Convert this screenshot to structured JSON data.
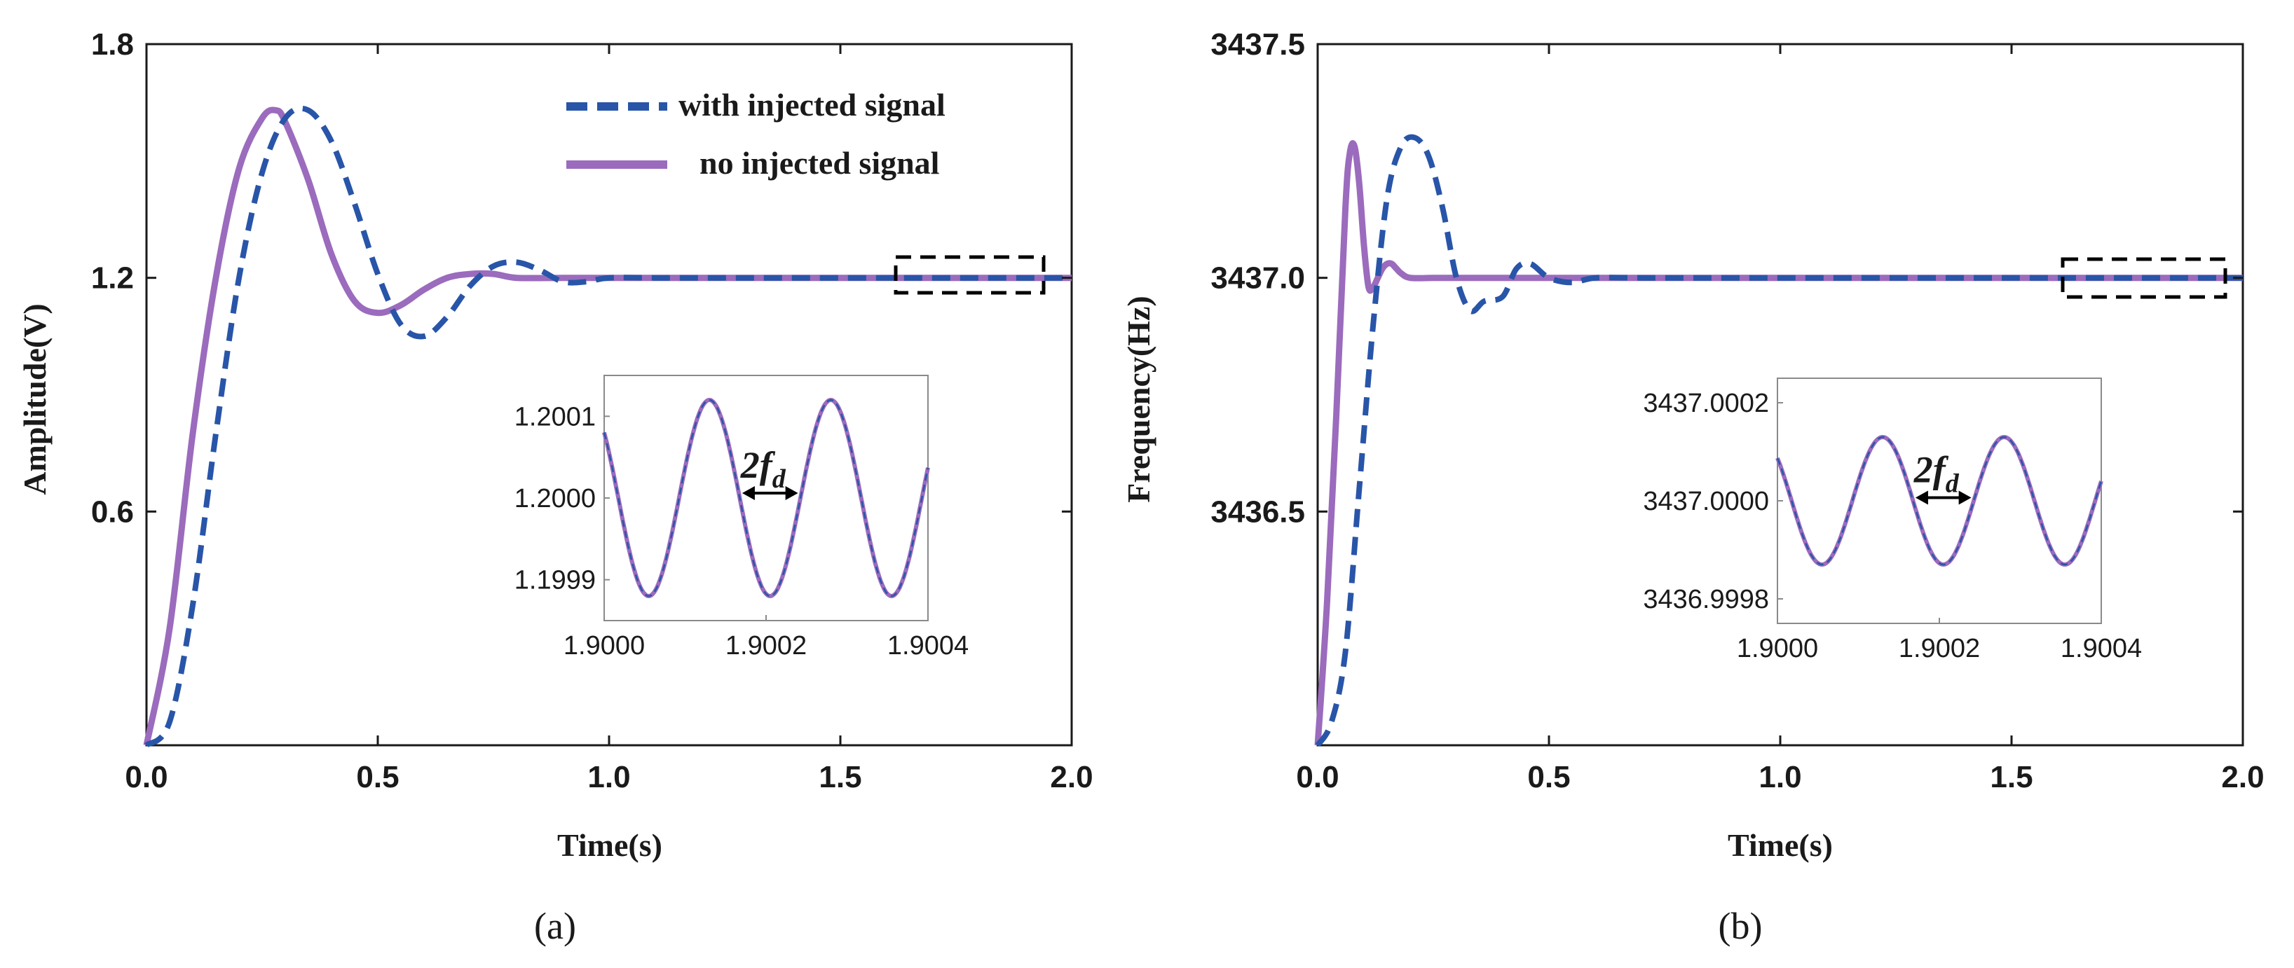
{
  "chart_data": [
    {
      "type": "line",
      "panel_label": "(a)",
      "xlabel": "Time(s)",
      "ylabel": "Amplitude(V)",
      "xlim": [
        0,
        2.0
      ],
      "ylim": [
        0,
        1.8
      ],
      "xticks": [
        "0.0",
        "0.5",
        "1.0",
        "1.5",
        "2.0"
      ],
      "yticks": [
        "0.6",
        "1.2",
        "1.8"
      ],
      "legend": [
        "with injected signal",
        "no injected signal"
      ],
      "series": [
        {
          "name": "with injected signal",
          "style": "dashed",
          "x": [
            0,
            0.05,
            0.1,
            0.15,
            0.2,
            0.25,
            0.3,
            0.35,
            0.4,
            0.45,
            0.5,
            0.55,
            0.6,
            0.65,
            0.7,
            0.75,
            0.8,
            0.85,
            0.9,
            0.95,
            1.0,
            1.1,
            1.2,
            1.3,
            1.4,
            1.6,
            1.8,
            2.0
          ],
          "y": [
            0.0,
            0.06,
            0.36,
            0.8,
            1.2,
            1.47,
            1.61,
            1.63,
            1.55,
            1.39,
            1.21,
            1.08,
            1.05,
            1.1,
            1.18,
            1.23,
            1.24,
            1.22,
            1.19,
            1.19,
            1.2,
            1.2,
            1.2,
            1.2,
            1.2,
            1.2,
            1.2,
            1.2
          ]
        },
        {
          "name": "no injected signal",
          "style": "solid",
          "x": [
            0,
            0.05,
            0.1,
            0.15,
            0.2,
            0.25,
            0.28,
            0.3,
            0.35,
            0.4,
            0.45,
            0.5,
            0.55,
            0.6,
            0.65,
            0.7,
            0.75,
            0.8,
            0.9,
            1.0,
            1.2,
            1.5,
            2.0
          ],
          "y": [
            0.0,
            0.3,
            0.8,
            1.2,
            1.48,
            1.61,
            1.63,
            1.6,
            1.45,
            1.26,
            1.14,
            1.11,
            1.13,
            1.17,
            1.2,
            1.21,
            1.21,
            1.2,
            1.2,
            1.2,
            1.2,
            1.2,
            1.2
          ]
        }
      ],
      "inset": {
        "xlim": [
          1.9,
          1.9004
        ],
        "ylim": [
          1.19985,
          1.20015
        ],
        "xticks": [
          "1.9000",
          "1.9002",
          "1.9004"
        ],
        "yticks": [
          "1.1999",
          "1.2000",
          "1.2001"
        ],
        "sine_center": 1.2,
        "sine_amplitude": 0.00012,
        "sine_period": 0.00015,
        "sine_first_peak": 1.90013,
        "annotation": "2f",
        "annotation_sub": "d"
      }
    },
    {
      "type": "line",
      "panel_label": "(b)",
      "xlabel": "Time(s)",
      "ylabel": "Frequency(Hz)",
      "xlim": [
        0,
        2.0
      ],
      "ylim": [
        3436.0,
        3437.5
      ],
      "xticks": [
        "0.0",
        "0.5",
        "1.0",
        "1.5",
        "2.0"
      ],
      "yticks": [
        "3436.5",
        "3437.0",
        "3437.5"
      ],
      "series": [
        {
          "name": "with injected signal",
          "style": "dashed",
          "x": [
            0,
            0.03,
            0.06,
            0.09,
            0.12,
            0.15,
            0.18,
            0.21,
            0.24,
            0.27,
            0.3,
            0.33,
            0.36,
            0.4,
            0.43,
            0.46,
            0.5,
            0.55,
            0.6,
            0.7,
            0.8,
            1.0,
            1.5,
            2.0
          ],
          "y": [
            3436.0,
            3436.05,
            3436.2,
            3436.55,
            3436.9,
            3437.17,
            3437.28,
            3437.3,
            3437.26,
            3437.15,
            3437.0,
            3436.93,
            3436.95,
            3436.96,
            3437.02,
            3437.03,
            3437.0,
            3436.99,
            3437.0,
            3437.0,
            3437.0,
            3437.0,
            3437.0,
            3437.0
          ]
        },
        {
          "name": "no injected signal",
          "style": "solid",
          "x": [
            0,
            0.02,
            0.04,
            0.06,
            0.07,
            0.08,
            0.09,
            0.1,
            0.11,
            0.12,
            0.13,
            0.14,
            0.15,
            0.16,
            0.17,
            0.18,
            0.2,
            0.25,
            0.3,
            0.5,
            1.0,
            1.5,
            2.0
          ],
          "y": [
            3436.0,
            3436.3,
            3436.7,
            3437.15,
            3437.27,
            3437.28,
            3437.2,
            3437.07,
            3436.98,
            3436.98,
            3437.0,
            3437.02,
            3437.03,
            3437.03,
            3437.02,
            3437.01,
            3437.0,
            3437.0,
            3437.0,
            3437.0,
            3437.0,
            3437.0,
            3437.0
          ]
        }
      ],
      "inset": {
        "xlim": [
          1.9,
          1.9004
        ],
        "ylim": [
          3436.99975,
          3437.00025
        ],
        "xticks": [
          "1.9000",
          "1.9002",
          "1.9004"
        ],
        "yticks": [
          "3436.9998",
          "3437.0000",
          "3437.0002"
        ],
        "sine_center": 3437.0,
        "sine_amplitude": 0.00013,
        "sine_period": 0.00015,
        "sine_first_peak": 1.90013,
        "annotation": "2f",
        "annotation_sub": "d"
      }
    }
  ],
  "colors": {
    "dashed": "#2855a8",
    "solid": "#9b6bbd",
    "axis": "#1a1a1a"
  }
}
